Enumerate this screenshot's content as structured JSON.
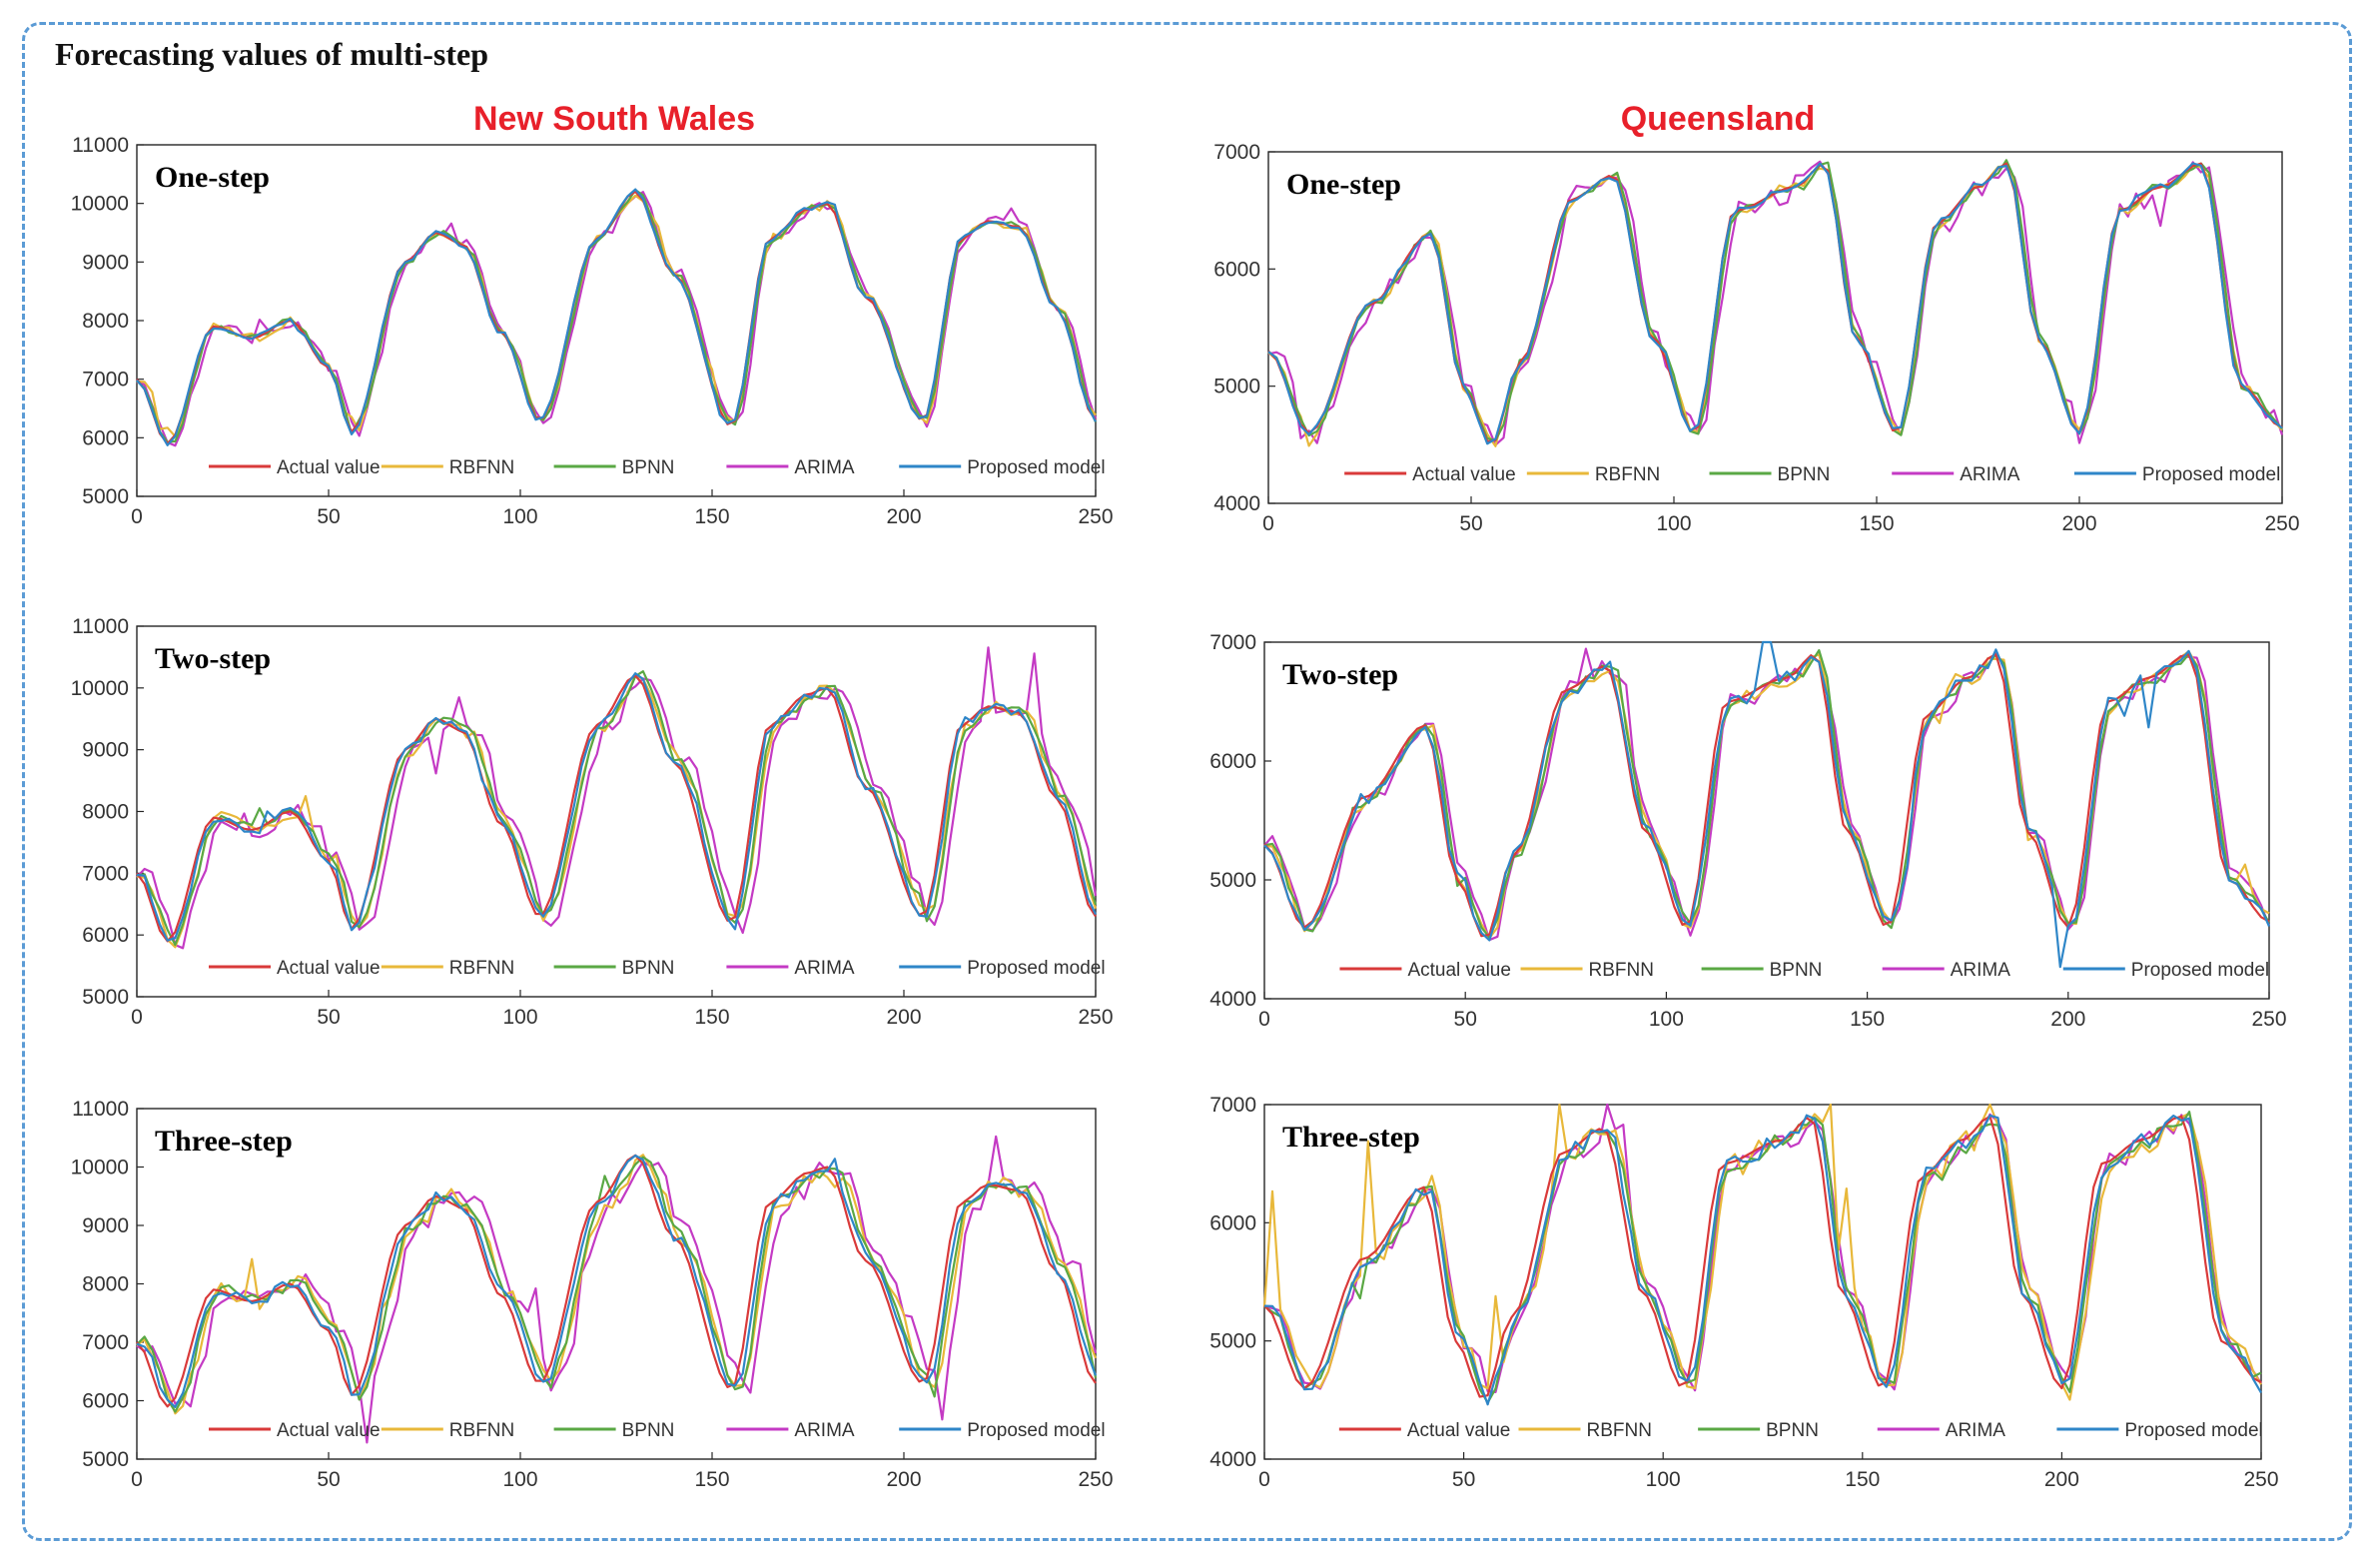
{
  "figure_title": "Forecasting  values of multi-step",
  "regions": [
    {
      "key": "nsw",
      "title": "New South Wales",
      "color": "#e8202a"
    },
    {
      "key": "qld",
      "title": "Queensland",
      "color": "#e8202a"
    }
  ],
  "series_names": [
    "Actual value",
    "RBFNN",
    "BPNN",
    "ARIMA",
    "Proposed model"
  ],
  "series_colors": [
    "#d93a3a",
    "#e8b83a",
    "#5aa844",
    "#c43ac4",
    "#2e86c8"
  ],
  "chart_data": [
    {
      "type": "line",
      "region": "New South Wales",
      "title": "One-step",
      "xlim": [
        0,
        250
      ],
      "ylim": [
        5000,
        11000
      ],
      "xticks": [
        0,
        50,
        100,
        150,
        200,
        250
      ],
      "yticks": [
        5000,
        6000,
        7000,
        8000,
        9000,
        10000,
        11000
      ],
      "x_knots": [
        0,
        8,
        20,
        30,
        40,
        50,
        56,
        70,
        78,
        85,
        95,
        105,
        120,
        130,
        140,
        155,
        165,
        175,
        180,
        190,
        205,
        215,
        222,
        230,
        240,
        250
      ],
      "actual_knots": [
        7000,
        5900,
        7900,
        7700,
        8000,
        7200,
        6100,
        9000,
        9500,
        9300,
        7800,
        6300,
        9400,
        10200,
        8800,
        6200,
        9400,
        9900,
        10000,
        8400,
        6300,
        9400,
        9700,
        9600,
        8200,
        6300
      ],
      "series": [
        {
          "name": "Actual value",
          "noise": 0,
          "lag": 0,
          "spike": 0
        },
        {
          "name": "RBFNN",
          "noise": 80,
          "lag": 0.5,
          "spike": 300
        },
        {
          "name": "BPNN",
          "noise": 60,
          "lag": 0.5,
          "spike": 200
        },
        {
          "name": "ARIMA",
          "noise": 110,
          "lag": 1,
          "spike": 400
        },
        {
          "name": "Proposed model",
          "noise": 40,
          "lag": 0,
          "spike": 100
        }
      ]
    },
    {
      "type": "line",
      "region": "New South Wales",
      "title": "Two-step",
      "xlim": [
        0,
        250
      ],
      "ylim": [
        5000,
        11000
      ],
      "xticks": [
        0,
        50,
        100,
        150,
        200,
        250
      ],
      "yticks": [
        5000,
        6000,
        7000,
        8000,
        9000,
        10000,
        11000
      ],
      "x_knots": [
        0,
        8,
        20,
        30,
        40,
        50,
        56,
        70,
        78,
        85,
        95,
        105,
        120,
        130,
        140,
        155,
        165,
        175,
        180,
        190,
        205,
        215,
        222,
        230,
        240,
        250
      ],
      "actual_knots": [
        7000,
        5900,
        7900,
        7700,
        8000,
        7200,
        6100,
        9000,
        9500,
        9300,
        7800,
        6300,
        9400,
        10200,
        8800,
        6200,
        9400,
        9900,
        10000,
        8400,
        6300,
        9400,
        9700,
        9600,
        8200,
        6300
      ],
      "series": [
        {
          "name": "Actual value",
          "noise": 0,
          "lag": 0,
          "spike": 0
        },
        {
          "name": "RBFNN",
          "noise": 120,
          "lag": 1.5,
          "spike": 600
        },
        {
          "name": "BPNN",
          "noise": 90,
          "lag": 1.5,
          "spike": 350
        },
        {
          "name": "ARIMA",
          "noise": 170,
          "lag": 3,
          "spike": 900
        },
        {
          "name": "Proposed model",
          "noise": 70,
          "lag": 0.5,
          "spike": 200
        }
      ]
    },
    {
      "type": "line",
      "region": "New South Wales",
      "title": "Three-step",
      "xlim": [
        0,
        250
      ],
      "ylim": [
        5000,
        11000
      ],
      "xticks": [
        0,
        50,
        100,
        150,
        200,
        250
      ],
      "yticks": [
        5000,
        6000,
        7000,
        8000,
        9000,
        10000,
        11000
      ],
      "x_knots": [
        0,
        8,
        20,
        30,
        40,
        50,
        56,
        70,
        78,
        85,
        95,
        105,
        120,
        130,
        140,
        155,
        165,
        175,
        180,
        190,
        205,
        215,
        222,
        230,
        240,
        250
      ],
      "actual_knots": [
        7000,
        5900,
        7900,
        7700,
        8000,
        7200,
        6100,
        9000,
        9500,
        9300,
        7800,
        6300,
        9400,
        10200,
        8800,
        6200,
        9400,
        9900,
        10000,
        8400,
        6300,
        9400,
        9700,
        9600,
        8200,
        6300
      ],
      "series": [
        {
          "name": "Actual value",
          "noise": 0,
          "lag": 0,
          "spike": 0
        },
        {
          "name": "RBFNN",
          "noise": 150,
          "lag": 2.5,
          "spike": 700
        },
        {
          "name": "BPNN",
          "noise": 120,
          "lag": 2,
          "spike": 500
        },
        {
          "name": "ARIMA",
          "noise": 200,
          "lag": 4,
          "spike": 1200
        },
        {
          "name": "Proposed model",
          "noise": 100,
          "lag": 1,
          "spike": 300
        }
      ]
    },
    {
      "type": "line",
      "region": "Queensland",
      "title": "One-step",
      "xlim": [
        0,
        250
      ],
      "ylim": [
        4000,
        7000
      ],
      "xticks": [
        0,
        50,
        100,
        150,
        200,
        250
      ],
      "yticks": [
        4000,
        5000,
        6000,
        7000
      ],
      "x_knots": [
        0,
        10,
        25,
        40,
        48,
        55,
        62,
        75,
        85,
        95,
        105,
        115,
        130,
        137,
        145,
        155,
        165,
        175,
        182,
        190,
        200,
        210,
        220,
        230,
        240,
        250
      ],
      "actual_knots": [
        5300,
        4600,
        5700,
        6300,
        5000,
        4500,
        5200,
        6600,
        6800,
        5400,
        4600,
        6500,
        6700,
        6900,
        5400,
        4600,
        6400,
        6700,
        6900,
        5400,
        4600,
        6500,
        6700,
        6900,
        5000,
        4650
      ],
      "series": [
        {
          "name": "Actual value",
          "noise": 0,
          "lag": 0,
          "spike": 0
        },
        {
          "name": "RBFNN",
          "noise": 40,
          "lag": 0.5,
          "spike": 100
        },
        {
          "name": "BPNN",
          "noise": 35,
          "lag": 0.5,
          "spike": 80
        },
        {
          "name": "ARIMA",
          "noise": 110,
          "lag": 1,
          "spike": 450
        },
        {
          "name": "Proposed model",
          "noise": 25,
          "lag": 0,
          "spike": 60
        }
      ]
    },
    {
      "type": "line",
      "region": "Queensland",
      "title": "Two-step",
      "xlim": [
        0,
        250
      ],
      "ylim": [
        4000,
        7000
      ],
      "xticks": [
        0,
        50,
        100,
        150,
        200,
        250
      ],
      "yticks": [
        4000,
        5000,
        6000,
        7000
      ],
      "x_knots": [
        0,
        10,
        25,
        40,
        48,
        55,
        62,
        75,
        85,
        95,
        105,
        115,
        130,
        137,
        145,
        155,
        165,
        175,
        182,
        190,
        200,
        210,
        220,
        230,
        240,
        250
      ],
      "actual_knots": [
        5300,
        4600,
        5700,
        6300,
        5000,
        4500,
        5200,
        6600,
        6800,
        5400,
        4600,
        6500,
        6700,
        6900,
        5400,
        4600,
        6400,
        6700,
        6900,
        5400,
        4600,
        6500,
        6700,
        6900,
        5000,
        4650
      ],
      "series": [
        {
          "name": "Actual value",
          "noise": 0,
          "lag": 0,
          "spike": 0
        },
        {
          "name": "RBFNN",
          "noise": 60,
          "lag": 1,
          "spike": 200
        },
        {
          "name": "BPNN",
          "noise": 50,
          "lag": 1,
          "spike": 150
        },
        {
          "name": "ARIMA",
          "noise": 80,
          "lag": 1.5,
          "spike": 300
        },
        {
          "name": "Proposed model",
          "noise": 60,
          "lag": 0.5,
          "spike": 800
        }
      ]
    },
    {
      "type": "line",
      "region": "Queensland",
      "title": "Three-step",
      "xlim": [
        0,
        250
      ],
      "ylim": [
        4000,
        7000
      ],
      "xticks": [
        0,
        50,
        100,
        150,
        200,
        250
      ],
      "yticks": [
        4000,
        5000,
        6000,
        7000
      ],
      "x_knots": [
        0,
        10,
        25,
        40,
        48,
        55,
        62,
        75,
        85,
        95,
        105,
        115,
        130,
        137,
        145,
        155,
        165,
        175,
        182,
        190,
        200,
        210,
        220,
        230,
        240,
        250
      ],
      "actual_knots": [
        5300,
        4600,
        5700,
        6300,
        5000,
        4500,
        5200,
        6600,
        6800,
        5400,
        4600,
        6500,
        6700,
        6900,
        5400,
        4600,
        6400,
        6700,
        6900,
        5400,
        4600,
        6500,
        6700,
        6900,
        5000,
        4650
      ],
      "series": [
        {
          "name": "Actual value",
          "noise": 0,
          "lag": 0,
          "spike": 0
        },
        {
          "name": "RBFNN",
          "noise": 110,
          "lag": 2,
          "spike": 800
        },
        {
          "name": "BPNN",
          "noise": 70,
          "lag": 1.5,
          "spike": 250
        },
        {
          "name": "ARIMA",
          "noise": 90,
          "lag": 2,
          "spike": 350
        },
        {
          "name": "Proposed model",
          "noise": 70,
          "lag": 1,
          "spike": 200
        }
      ]
    }
  ]
}
